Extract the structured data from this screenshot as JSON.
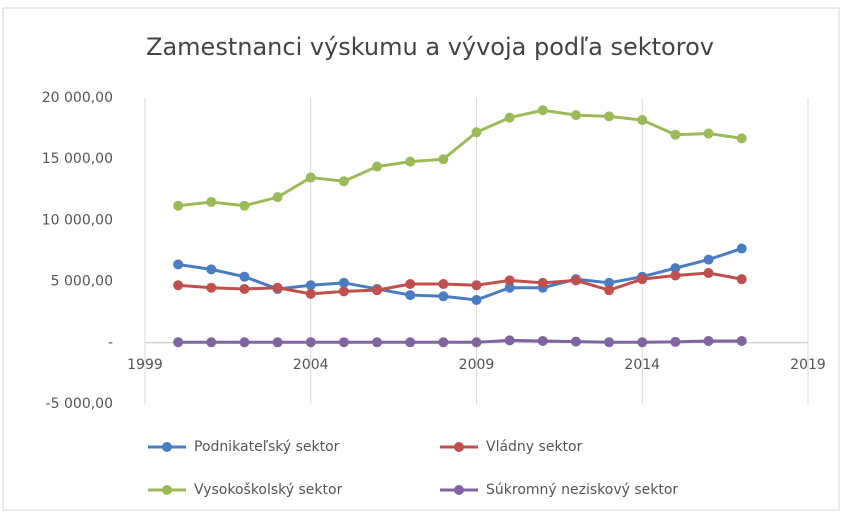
{
  "chart_data": {
    "type": "line",
    "title": "Zamestnanci výskumu a vývoja podľa sektorov",
    "x": [
      2000,
      2001,
      2002,
      2003,
      2004,
      2005,
      2006,
      2007,
      2008,
      2009,
      2010,
      2011,
      2012,
      2013,
      2014,
      2015,
      2016,
      2017
    ],
    "series": [
      {
        "name": "Podnikateľský sektor",
        "color": "#4a7cc1",
        "values": [
          6400,
          6000,
          5400,
          4400,
          4700,
          4900,
          4400,
          3900,
          3800,
          3500,
          4500,
          4500,
          5200,
          4900,
          5400,
          6100,
          6800,
          7700
        ]
      },
      {
        "name": "Vládny sektor",
        "color": "#c0504d",
        "values": [
          4700,
          4500,
          4400,
          4500,
          4000,
          4200,
          4300,
          4800,
          4800,
          4700,
          5100,
          4900,
          5100,
          4300,
          5200,
          5500,
          5700,
          5200
        ]
      },
      {
        "name": "Vysokoškolský sektor",
        "color": "#9bbb59",
        "values": [
          11200,
          11500,
          11200,
          11900,
          13500,
          13200,
          14400,
          14800,
          15000,
          17200,
          18400,
          19000,
          18600,
          18500,
          18200,
          17000,
          17100,
          16700
        ]
      },
      {
        "name": "Súkromný neziskový sektor",
        "color": "#8064a2",
        "values": [
          50,
          40,
          40,
          40,
          50,
          50,
          40,
          40,
          40,
          40,
          200,
          150,
          100,
          50,
          50,
          80,
          150,
          150
        ]
      }
    ],
    "xlim": [
      1999,
      2019
    ],
    "xticks": [
      1999,
      2004,
      2009,
      2014,
      2019
    ],
    "ylim": [
      -5000,
      20000
    ],
    "yticks": [
      {
        "value": 20000,
        "label": "20 000,00"
      },
      {
        "value": 15000,
        "label": "15 000,00"
      },
      {
        "value": 10000,
        "label": "10 000,00"
      },
      {
        "value": 5000,
        "label": "5 000,00"
      },
      {
        "value": 0,
        "label": "-"
      },
      {
        "value": -5000,
        "label": "-5 000,00"
      }
    ],
    "grid": "x",
    "legend": "bottom"
  }
}
